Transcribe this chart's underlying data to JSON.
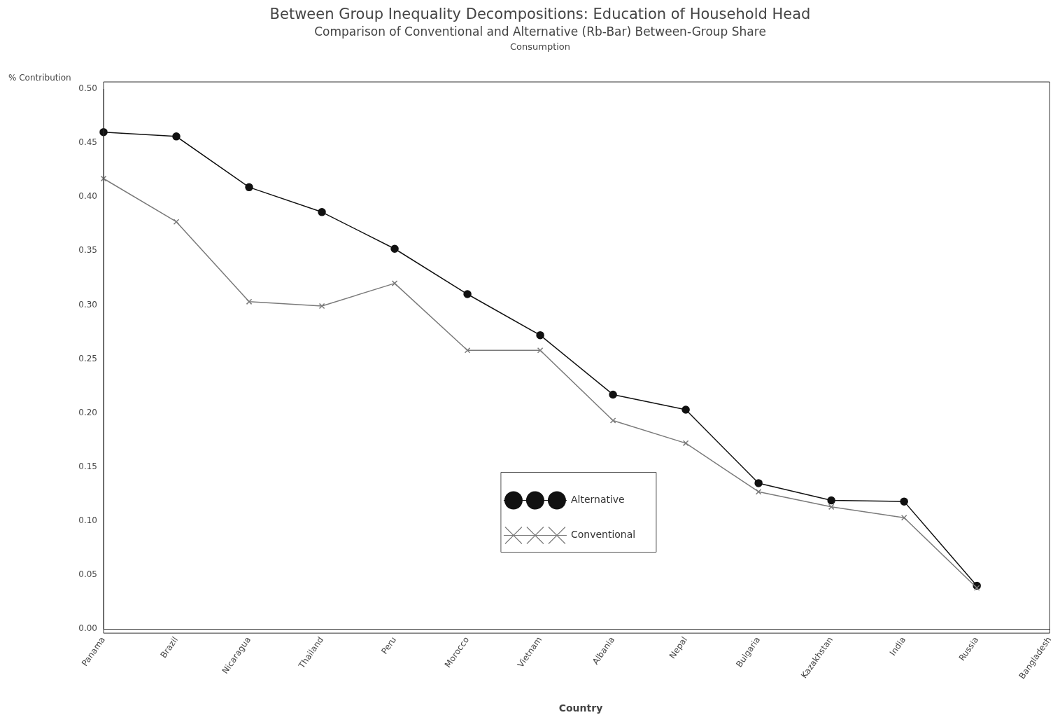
{
  "chart_data": {
    "type": "line",
    "title": "Between Group Inequality Decompositions: Education of Household Head",
    "subtitle": "Comparison of Conventional and Alternative (Rb-Bar) Between-Group Share",
    "annotations": [
      "Consumption"
    ],
    "xlabel": "Country",
    "ylabel": "% Contribution",
    "categories": [
      "Panama",
      "Brazil",
      "Nicaragua",
      "Thailand",
      "Peru",
      "Morocco",
      "Vietnam",
      "Albania",
      "Nepal",
      "Bulgaria",
      "Kazakhstan",
      "India",
      "Russia",
      "Bangladesh"
    ],
    "series": [
      {
        "name": "Alternative",
        "color": "#111111",
        "marker": "circle",
        "values": [
          0.46,
          0.456,
          0.409,
          0.386,
          0.352,
          0.31,
          0.272,
          0.217,
          0.203,
          0.135,
          0.119,
          0.118,
          0.04,
          null
        ]
      },
      {
        "name": "Conventional",
        "color": "#7a7a7a",
        "marker": "cross",
        "values": [
          0.417,
          0.377,
          0.303,
          0.299,
          0.32,
          0.258,
          0.258,
          0.193,
          0.172,
          0.127,
          0.113,
          0.103,
          0.038,
          null
        ]
      }
    ],
    "ylim": [
      0,
      0.5
    ],
    "yticks": [
      {
        "value": 0,
        "label": "0.00"
      },
      {
        "value": 0.05,
        "label": "0.05"
      },
      {
        "value": 0.1,
        "label": "0.10"
      },
      {
        "value": 0.15,
        "label": "0.15"
      },
      {
        "value": 0.2,
        "label": "0.20"
      },
      {
        "value": 0.25,
        "label": "0.25"
      },
      {
        "value": 0.3,
        "label": "0.30"
      },
      {
        "value": 0.35,
        "label": "0.35"
      },
      {
        "value": 0.4,
        "label": "0.40"
      },
      {
        "value": 0.45,
        "label": "0.45"
      },
      {
        "value": 0.5,
        "label": "0.50"
      }
    ],
    "grid": false,
    "legend": "bottom",
    "line_style": "solid"
  }
}
